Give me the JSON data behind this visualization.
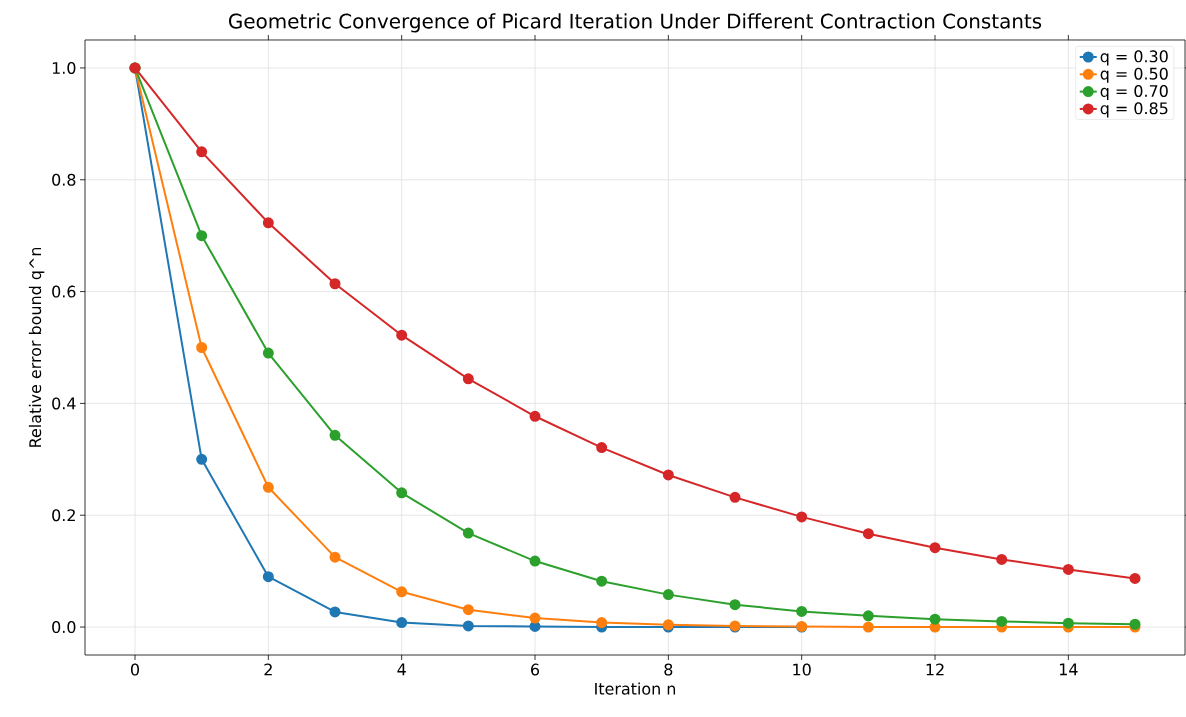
{
  "chart_data": {
    "type": "line",
    "title": "Geometric Convergence of Picard Iteration Under Different Contraction Constants",
    "xlabel": "Iteration n",
    "ylabel": "Relative error bound q^n",
    "x": [
      0,
      1,
      2,
      3,
      4,
      5,
      6,
      7,
      8,
      9,
      10,
      11,
      12,
      13,
      14,
      15
    ],
    "series": [
      {
        "name": "q = 0.30",
        "color": "#1f77b4",
        "values": [
          1,
          0.3,
          0.09,
          0.027,
          0.008,
          0.002,
          0.001,
          0,
          0,
          0,
          0,
          null,
          null,
          null,
          null,
          null
        ]
      },
      {
        "name": "q = 0.50",
        "color": "#ff7f0e",
        "values": [
          1,
          0.5,
          0.25,
          0.125,
          0.063,
          0.031,
          0.016,
          0.008,
          0.004,
          0.002,
          0.001,
          0,
          0,
          0,
          0,
          0
        ]
      },
      {
        "name": "q = 0.70",
        "color": "#2ca02c",
        "values": [
          1,
          0.7,
          0.49,
          0.343,
          0.24,
          0.168,
          0.118,
          0.082,
          0.058,
          0.04,
          0.028,
          0.02,
          0.014,
          0.01,
          0.007,
          0.005
        ]
      },
      {
        "name": "q = 0.85",
        "color": "#d62728",
        "values": [
          1,
          0.85,
          0.723,
          0.614,
          0.522,
          0.444,
          0.377,
          0.321,
          0.272,
          0.232,
          0.197,
          0.167,
          0.142,
          0.121,
          0.103,
          0.087
        ]
      }
    ],
    "xlim": [
      -0.75,
      15.75
    ],
    "ylim": [
      -0.05,
      1.05
    ],
    "xticks": [
      0,
      2,
      4,
      6,
      8,
      10,
      12,
      14
    ],
    "yticks": [
      {
        "value": 0,
        "label": "0.0"
      },
      {
        "value": 0.2,
        "label": "0.2"
      },
      {
        "value": 0.4,
        "label": "0.4"
      },
      {
        "value": 0.6,
        "label": "0.6"
      },
      {
        "value": 0.8,
        "label": "0.8"
      },
      {
        "value": 1,
        "label": "1.0"
      }
    ],
    "grid": true,
    "legend": "top right",
    "marker": "circle",
    "line_style": "solid"
  }
}
